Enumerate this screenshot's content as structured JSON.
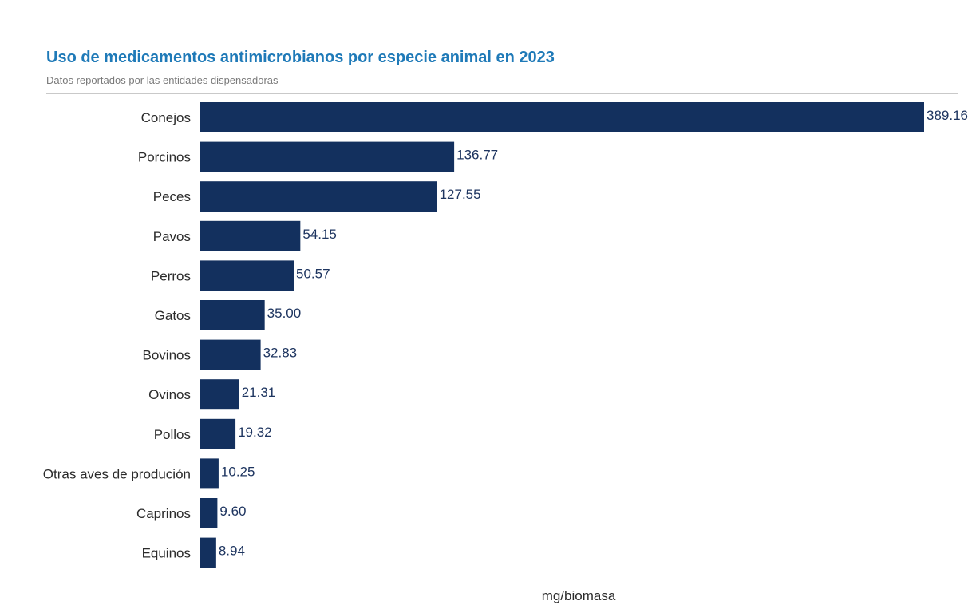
{
  "chart_data": {
    "type": "bar",
    "orientation": "horizontal",
    "title": "Uso de medicamentos antimicrobianos por especie animal en 2023",
    "subtitle": "Datos reportados por las entidades dispensadoras",
    "xlabel": "mg/biomasa",
    "ylabel": "",
    "categories": [
      "Conejos",
      "Porcinos",
      "Peces",
      "Pavos",
      "Perros",
      "Gatos",
      "Bovinos",
      "Ovinos",
      "Pollos",
      "Otras aves de produción",
      "Caprinos",
      "Equinos"
    ],
    "values": [
      389.16,
      136.77,
      127.55,
      54.15,
      50.57,
      35.0,
      32.83,
      21.31,
      19.32,
      10.25,
      9.6,
      8.94
    ],
    "value_labels": [
      "389.16",
      "136.77",
      "127.55",
      "54.15",
      "50.57",
      "35.00",
      "32.83",
      "21.31",
      "19.32",
      "10.25",
      "9.60",
      "8.94"
    ],
    "xlim": [
      0,
      389.16
    ],
    "grid": false,
    "legend": "none",
    "bar_color": "#13305e",
    "title_color": "#1f7ab8"
  }
}
